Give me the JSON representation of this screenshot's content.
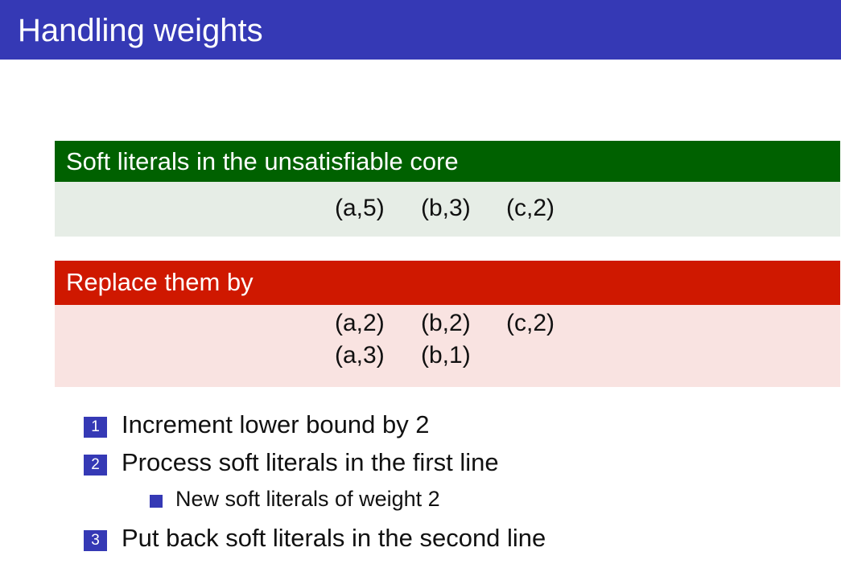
{
  "slide": {
    "title": "Handling weights"
  },
  "core_block": {
    "heading": "Soft literals in the unsatisfiable core",
    "rows": [
      [
        "(a,5)",
        "(b,3)",
        "(c,2)"
      ]
    ]
  },
  "replace_block": {
    "heading": "Replace them by",
    "rows": [
      [
        "(a,2)",
        "(b,2)",
        "(c,2)"
      ],
      [
        "(a,3)",
        "(b,1)"
      ]
    ]
  },
  "steps": [
    {
      "number": "1",
      "text": "Increment lower bound by 2"
    },
    {
      "number": "2",
      "text": "Process soft literals in the first line"
    },
    {
      "number": "3",
      "text": "Put back soft literals in the second line"
    }
  ],
  "substeps": [
    {
      "text": "New soft literals of weight 2"
    }
  ],
  "colors": {
    "title_bar": "#3539b5",
    "core_header": "#006100",
    "core_body": "#e6ede6",
    "replace_header": "#cf1800",
    "replace_body": "#f9e3e1",
    "bullet": "#3539b5"
  }
}
